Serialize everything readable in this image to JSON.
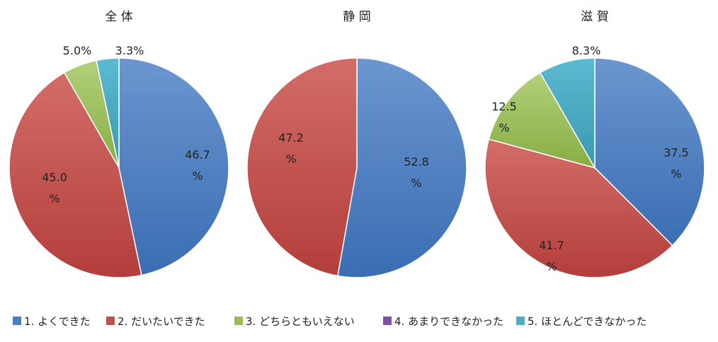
{
  "chart_data": {
    "type": "pie",
    "legend": {
      "position": "bottom",
      "entries": [
        {
          "label": "1. よくできた",
          "color": "#4a7ec0"
        },
        {
          "label": "2. だいたいできた",
          "color": "#c0504d"
        },
        {
          "label": "3. どちらともいえない",
          "color": "#9bbb59"
        },
        {
          "label": "4. あまりできなかった",
          "color": "#7f4fa3"
        },
        {
          "label": "5. ほとんどできなかった",
          "color": "#4bacc6"
        }
      ]
    },
    "charts": [
      {
        "title": "全 体",
        "values": [
          46.7,
          45.0,
          5.0,
          0,
          3.3
        ],
        "labels": [
          "46.7 %",
          "45.0 %",
          "5.0%",
          "",
          "3.3%"
        ]
      },
      {
        "title": "静 岡",
        "values": [
          52.8,
          47.2,
          0,
          0,
          0
        ],
        "labels": [
          "52.8 %",
          "47.2 %",
          "",
          "",
          ""
        ]
      },
      {
        "title": "滋 賀",
        "values": [
          37.5,
          41.7,
          12.5,
          0,
          8.3
        ],
        "labels": [
          "37.5 %",
          "41.7 %",
          "12.5 %",
          "",
          "8.3%"
        ]
      }
    ]
  }
}
